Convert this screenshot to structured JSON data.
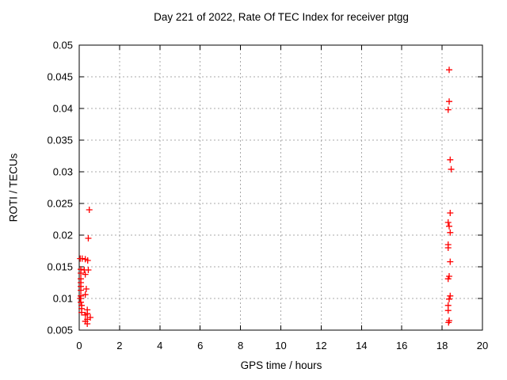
{
  "chart_data": {
    "type": "scatter",
    "title": "Day 221 of 2022, Rate Of TEC Index for receiver ptgg",
    "xlabel": "GPS time / hours",
    "ylabel": "ROTI / TECUs",
    "xlim": [
      0,
      20
    ],
    "ylim": [
      0.005,
      0.05
    ],
    "x_ticks": [
      0,
      2,
      4,
      6,
      8,
      10,
      12,
      14,
      16,
      18,
      20
    ],
    "x_tick_labels": [
      "0",
      "2",
      "4",
      "6",
      "8",
      "10",
      "12",
      "14",
      "16",
      "18",
      "20"
    ],
    "y_ticks": [
      0.005,
      0.01,
      0.015,
      0.02,
      0.025,
      0.03,
      0.035,
      0.04,
      0.045,
      0.05
    ],
    "y_tick_labels": [
      "0.005",
      "0.01",
      "0.015",
      "0.02",
      "0.025",
      "0.03",
      "0.035",
      "0.04",
      "0.045",
      "0.05"
    ],
    "grid": true,
    "legend_position": "none",
    "marker": {
      "shape": "plus",
      "size": 8
    },
    "colors": {
      "marker": "#ff0000",
      "grid": "#a8a8a8",
      "axis": "#000000",
      "text": "#000000",
      "background": "#ffffff"
    },
    "series": [
      {
        "name": "ROTI",
        "points": [
          [
            0.5,
            0.024
          ],
          [
            0.45,
            0.0195
          ],
          [
            0.05,
            0.0163
          ],
          [
            0.15,
            0.0163
          ],
          [
            0.3,
            0.0162
          ],
          [
            0.42,
            0.016
          ],
          [
            0.08,
            0.0146
          ],
          [
            0.25,
            0.0145
          ],
          [
            0.45,
            0.0145
          ],
          [
            0.08,
            0.014
          ],
          [
            0.3,
            0.0138
          ],
          [
            0.08,
            0.0131
          ],
          [
            0.08,
            0.0125
          ],
          [
            0.08,
            0.0119
          ],
          [
            0.35,
            0.0115
          ],
          [
            0.08,
            0.0113
          ],
          [
            0.3,
            0.0106
          ],
          [
            0.08,
            0.0104
          ],
          [
            0.05,
            0.01
          ],
          [
            0.08,
            0.0094
          ],
          [
            0.12,
            0.0089
          ],
          [
            0.12,
            0.0084
          ],
          [
            0.4,
            0.0082
          ],
          [
            0.12,
            0.0078
          ],
          [
            0.4,
            0.0076
          ],
          [
            0.3,
            0.0074
          ],
          [
            0.55,
            0.007
          ],
          [
            0.4,
            0.0067
          ],
          [
            0.3,
            0.0064
          ],
          [
            0.4,
            0.006
          ],
          [
            18.35,
            0.0461
          ],
          [
            18.35,
            0.0411
          ],
          [
            18.3,
            0.0398
          ],
          [
            18.4,
            0.0319
          ],
          [
            18.45,
            0.0304
          ],
          [
            18.4,
            0.0235
          ],
          [
            18.3,
            0.022
          ],
          [
            18.35,
            0.0214
          ],
          [
            18.4,
            0.0204
          ],
          [
            18.3,
            0.0185
          ],
          [
            18.3,
            0.018
          ],
          [
            18.4,
            0.0158
          ],
          [
            18.35,
            0.0135
          ],
          [
            18.3,
            0.0131
          ],
          [
            18.4,
            0.0104
          ],
          [
            18.35,
            0.0099
          ],
          [
            18.3,
            0.0089
          ],
          [
            18.3,
            0.0081
          ],
          [
            18.35,
            0.0065
          ],
          [
            18.32,
            0.0062
          ]
        ]
      }
    ]
  }
}
